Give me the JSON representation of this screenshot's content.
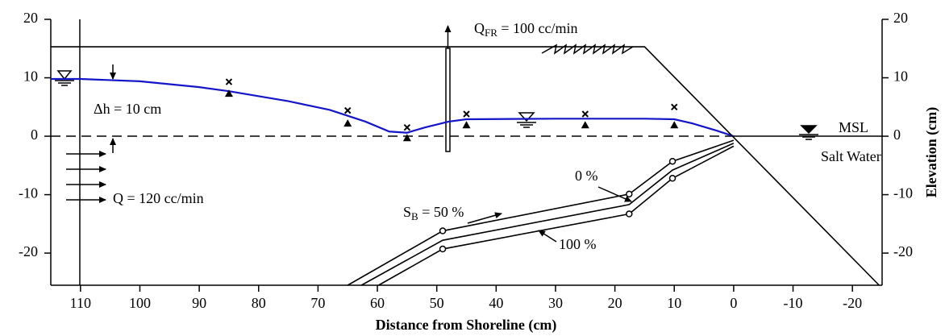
{
  "chart_data": {
    "type": "line",
    "xlabel": "Distance from Shoreline (cm)",
    "ylabel": "Elevation (cm)",
    "xlim": [
      115,
      -25
    ],
    "ylim": [
      -25.5,
      20
    ],
    "xticks": [
      110,
      100,
      90,
      80,
      70,
      60,
      50,
      40,
      30,
      20,
      10,
      0,
      -10,
      -20
    ],
    "yticks": [
      20,
      10,
      0,
      -10,
      -20
    ],
    "series": [
      {
        "color": "#1515c8",
        "x": [
          115,
          110,
          100,
          90,
          85,
          75,
          68,
          62,
          58,
          55,
          52,
          48,
          45,
          30,
          15,
          10,
          7,
          3,
          0
        ],
        "values": [
          9.8,
          9.8,
          9.4,
          8.4,
          7.7,
          6,
          4.5,
          2.5,
          0.8,
          0.6,
          1.5,
          2.5,
          2.9,
          3,
          3,
          2.9,
          2.2,
          1,
          0
        ]
      },
      {
        "color": "#000000",
        "x": [
          115,
          15,
          -24.5
        ],
        "values": [
          15.3,
          15.3,
          -25.5
        ]
      },
      {
        "color": "#000000",
        "x": [
          0,
          10.3,
          17.6,
          49,
          65
        ],
        "values": [
          -0.7,
          -4.3,
          -9.9,
          -16.2,
          -25.5
        ]
      },
      {
        "color": "#000000",
        "x": [
          0,
          10.3,
          17.6,
          49,
          62.7
        ],
        "values": [
          -1.2,
          -5.8,
          -11.7,
          -17.8,
          -25.5
        ]
      },
      {
        "color": "#000000",
        "x": [
          0,
          10.3,
          17.6,
          49,
          59.8
        ],
        "values": [
          -1.7,
          -7.2,
          -13.3,
          -19.3,
          -25.5
        ]
      },
      {
        "color": "#000000",
        "marker": "x",
        "x": [
          85,
          65,
          55,
          45,
          25,
          10
        ],
        "values": [
          9.3,
          4.4,
          1.5,
          3.8,
          3.8,
          5
        ]
      },
      {
        "color": "#000000",
        "marker": "triangle",
        "x": [
          85,
          65,
          55,
          45,
          25,
          10
        ],
        "values": [
          7.3,
          2.2,
          -0.3,
          1.9,
          1.9,
          1.9
        ]
      },
      {
        "color": "#000000",
        "marker": "circle",
        "x": [
          10.3,
          17.6,
          49,
          10.3,
          17.6,
          49
        ],
        "values": [
          -4.3,
          -9.9,
          -16.2,
          -7.2,
          -13.3,
          -19.3
        ]
      }
    ],
    "annotations": {
      "q_fr": [
        "Q",
        "FR",
        " = 100 cc/min"
      ],
      "s_b": [
        "S",
        "B",
        " = 50 %"
      ],
      "zero": "0 %",
      "hundred": "100 %",
      "dh": "Δh = 10 cm",
      "q": "Q = 120 cc/min",
      "msl": "MSL",
      "salt": "Salt Water"
    }
  }
}
